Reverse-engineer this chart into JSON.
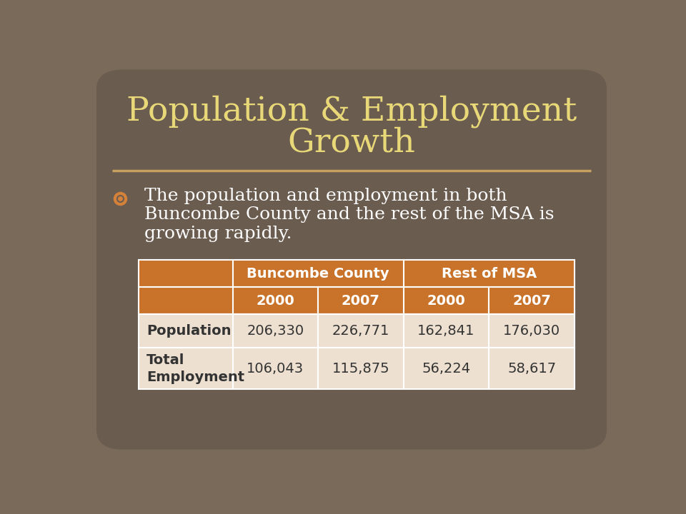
{
  "title_line1": "Population & Employment",
  "title_line2": "Growth",
  "title_color": "#E8D878",
  "background_color": "#7A6A5A",
  "slide_bg": "#6B5C50",
  "bullet_text_line1": "◎  The population and employment in both",
  "bullet_text_line2": "    Buncombe County and the rest of the MSA is",
  "bullet_text_line3": "    growing rapidly.",
  "bullet_color": "#FFFFFF",
  "header_bg": "#C8722A",
  "header_text_color": "#FFFFFF",
  "row_bg_light": "#EDE0D0",
  "row_data_text": "#333333",
  "row_label_text": "#333333",
  "separator_color": "#C8A060",
  "table_headers": [
    "Buncombe County",
    "Rest of MSA"
  ],
  "table_subheaders": [
    "2000",
    "2007",
    "2000",
    "2007"
  ],
  "row_labels": [
    "Population",
    "Total\nEmployment"
  ],
  "table_data": [
    [
      "206,330",
      "226,771",
      "162,841",
      "176,030"
    ],
    [
      "106,043",
      "115,875",
      "56,224",
      "58,617"
    ]
  ]
}
